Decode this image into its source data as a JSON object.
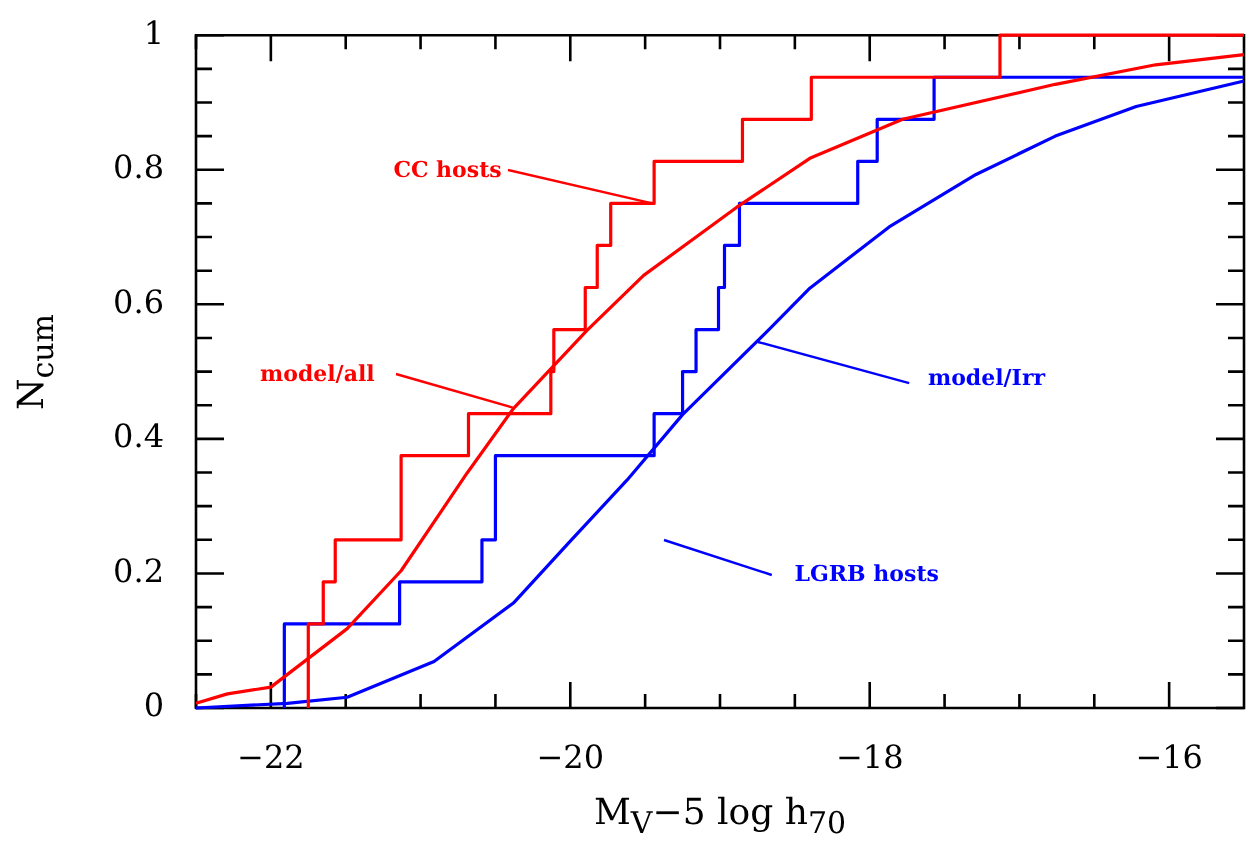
{
  "chart_data": {
    "type": "line",
    "xlabel": "M$_{V}$−5 log h$_{70}$",
    "ylabel": "N$_{cum}$",
    "xlim": [
      -22.5,
      -15.5
    ],
    "ylim": [
      0,
      1
    ],
    "xticks": [
      {
        "value": -22.5,
        "label": null
      },
      {
        "value": -22,
        "label": "−22"
      },
      {
        "value": -21.5,
        "label": null
      },
      {
        "value": -21,
        "label": null
      },
      {
        "value": -20.5,
        "label": null
      },
      {
        "value": -20,
        "label": "−20"
      },
      {
        "value": -19.5,
        "label": null
      },
      {
        "value": -19,
        "label": null
      },
      {
        "value": -18.5,
        "label": null
      },
      {
        "value": -18,
        "label": "−18"
      },
      {
        "value": -17.5,
        "label": null
      },
      {
        "value": -17,
        "label": null
      },
      {
        "value": -16.5,
        "label": null
      },
      {
        "value": -16,
        "label": "−16"
      }
    ],
    "yticks": [
      0,
      {
        "value": 0.05,
        "label": null
      },
      {
        "value": 0.1,
        "label": null
      },
      {
        "value": 0.15,
        "label": null
      },
      0.2,
      {
        "value": 0.25,
        "label": null
      },
      {
        "value": 0.3,
        "label": null
      },
      {
        "value": 0.35,
        "label": null
      },
      0.4,
      {
        "value": 0.45,
        "label": null
      },
      {
        "value": 0.5,
        "label": null
      },
      {
        "value": 0.55,
        "label": null
      },
      0.6,
      {
        "value": 0.65,
        "label": null
      },
      {
        "value": 0.7,
        "label": null
      },
      {
        "value": 0.75,
        "label": null
      },
      0.8,
      {
        "value": 0.85,
        "label": null
      },
      {
        "value": 0.9,
        "label": null
      },
      {
        "value": 0.95,
        "label": null
      },
      1
    ],
    "annotations": [
      {
        "text": "CC hosts",
        "x": -19.44,
        "y": 0.75
      },
      {
        "text": "model/all",
        "x": -20.38,
        "y": 0.445
      },
      "LGRB hosts",
      {
        "text": "model/Irr",
        "x": -18.75,
        "y": 0.545
      }
    ],
    "grid": false,
    "legend": false,
    "marker": "none",
    "line_style": "solid",
    "series": [
      {
        "type": "step",
        "color": "#ff0000",
        "x": [
          -21.75,
          -21.75,
          -21.65,
          -21.57,
          -21.13,
          -20.68,
          -20.13,
          -20.11,
          -19.9,
          -19.82,
          -19.73,
          -19.44,
          -18.85,
          -18.39,
          -17.13,
          -16.21,
          -15.5
        ],
        "values": [
          0,
          0.0625,
          0.125,
          0.1875,
          0.25,
          0.375,
          0.4375,
          0.5,
          0.5625,
          0.625,
          0.6875,
          0.75,
          0.8125,
          0.875,
          0.9375,
          1,
          1
        ]
      },
      {
        "type": "line",
        "color": "#ff0000",
        "x": [
          -22.5,
          -22.29,
          -22,
          -21.49,
          -21.13,
          -20.69,
          -20.38,
          -19.89,
          -19.51,
          -18.89,
          -18.4,
          -17.78,
          -16.76,
          -16.09,
          -15.5
        ],
        "values": [
          0.007,
          0.021,
          0.031,
          0.118,
          0.204,
          0.349,
          0.445,
          0.561,
          0.643,
          0.744,
          0.817,
          0.875,
          0.927,
          0.956,
          0.971
        ]
      },
      {
        "type": "step",
        "color": "#0000ff",
        "x": [
          -21.91,
          -21.91,
          -21.14,
          -20.59,
          -20.5,
          -19.44,
          -19.25,
          -19.16,
          -19.01,
          -18.97,
          -18.87,
          -18.08,
          -17.95,
          -17.57,
          -17.29,
          -15.5
        ],
        "values": [
          0,
          0.0625,
          0.125,
          0.1875,
          0.25,
          0.375,
          0.4375,
          0.5,
          0.5625,
          0.625,
          0.6875,
          0.75,
          0.8125,
          0.875,
          0.9375,
          0.9375
        ]
      },
      {
        "type": "line",
        "color": "#0000ff",
        "x": [
          -22.5,
          -21.89,
          -21.49,
          -20.91,
          -20.38,
          -20,
          -19.62,
          -19.25,
          -18.67,
          -18.4,
          -17.87,
          -17.29,
          -16.76,
          -16.22,
          -15.5
        ],
        "values": [
          0,
          0.007,
          0.016,
          0.069,
          0.156,
          0.248,
          0.339,
          0.436,
          0.563,
          0.624,
          0.715,
          0.793,
          0.85,
          0.894,
          0.932
        ]
      }
    ]
  }
}
